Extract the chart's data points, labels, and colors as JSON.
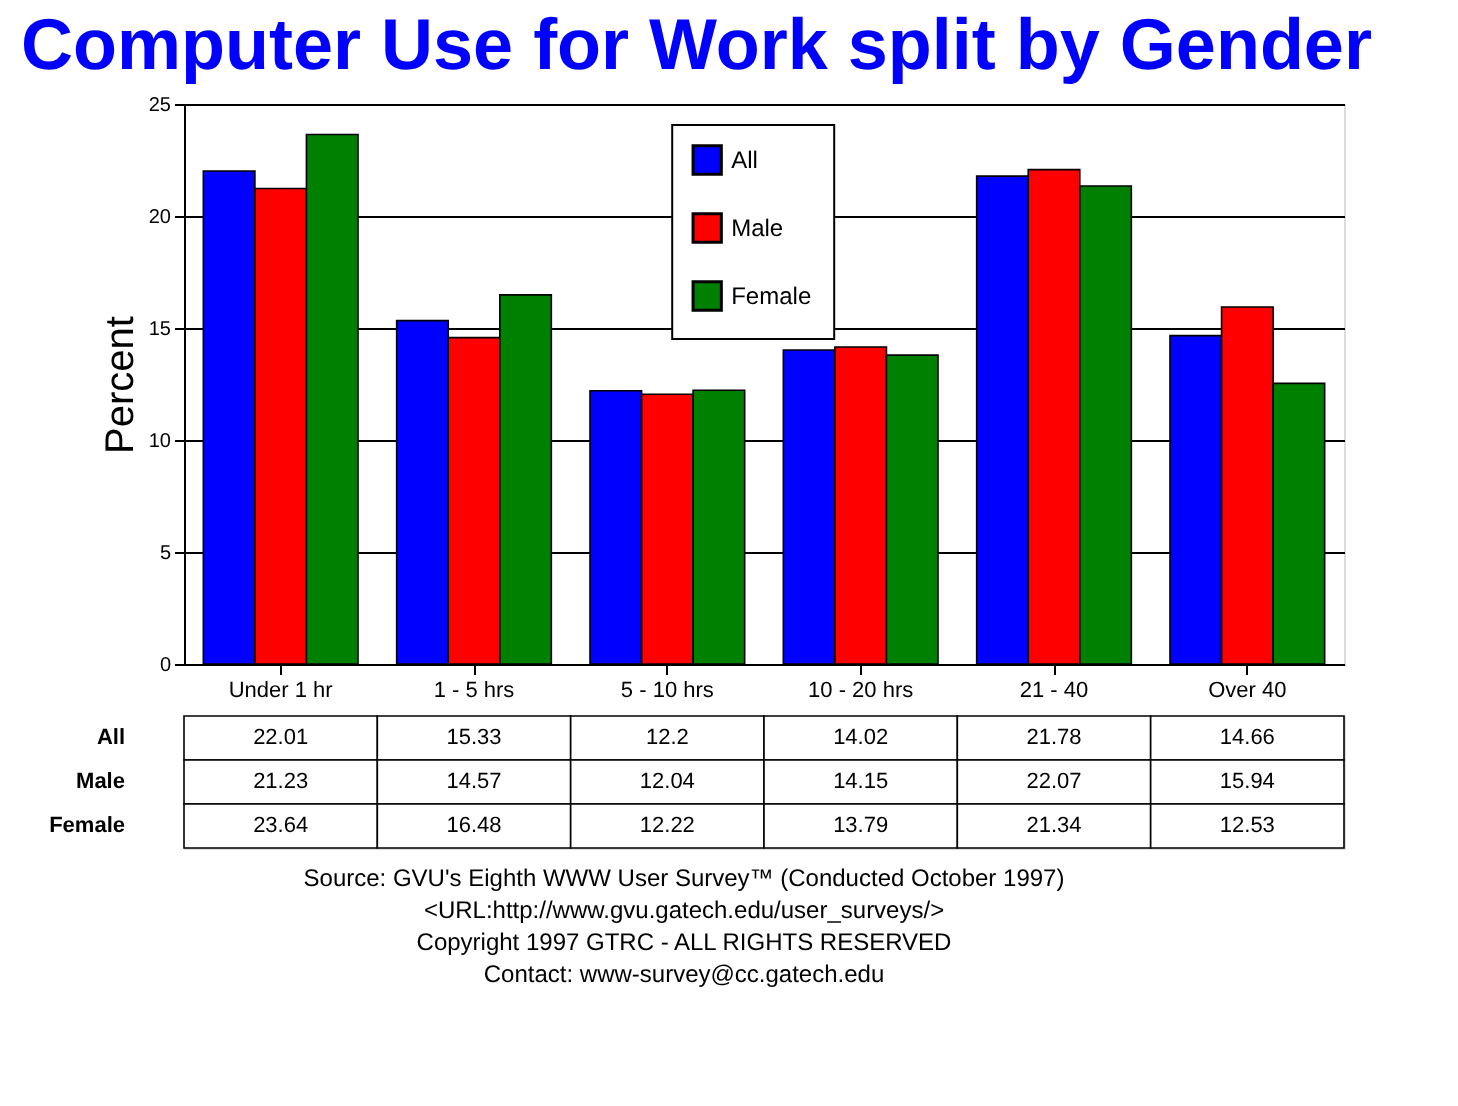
{
  "chart_data": {
    "type": "bar",
    "title": "Computer Use for Work split by Gender",
    "ylabel": "Percent",
    "categories": [
      "Under 1 hr",
      "1 - 5 hrs",
      "5 - 10 hrs",
      "10 - 20 hrs",
      "21 - 40",
      "Over 40"
    ],
    "series": [
      {
        "name": "All",
        "color": "#0000ff",
        "values": [
          22.01,
          15.33,
          12.2,
          14.02,
          21.78,
          14.66
        ]
      },
      {
        "name": "Male",
        "color": "#ff0000",
        "values": [
          21.23,
          14.57,
          12.04,
          14.15,
          22.07,
          15.94
        ]
      },
      {
        "name": "Female",
        "color": "#008000",
        "values": [
          23.64,
          16.48,
          12.22,
          13.79,
          21.34,
          12.53
        ]
      }
    ],
    "ylim": [
      0,
      25
    ],
    "yticks": [
      0,
      5,
      10,
      15,
      20,
      25
    ],
    "grid": "y",
    "legend": "top",
    "data_labels": true,
    "annotations": [
      "Source: GVU's Eighth WWW User Survey™ (Conducted October 1997)",
      "<URL:http://www.gvu.gatech.edu/user_surveys/>",
      "Copyright 1997 GTRC - ALL RIGHTS RESERVED",
      "Contact: www-survey@cc.gatech.edu"
    ]
  }
}
